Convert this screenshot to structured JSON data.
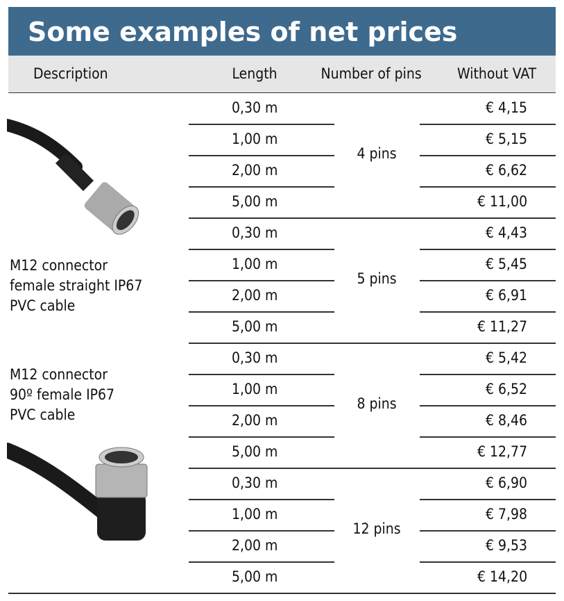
{
  "header": {
    "title": "Some examples of net prices"
  },
  "table": {
    "columns": [
      "Description",
      "Length",
      "Number of pins",
      "Without VAT"
    ],
    "descriptions": [
      [
        "M12 connector",
        "female straight IP67",
        "PVC cable"
      ],
      [
        "M12 connector",
        "90º female IP67",
        "PVC cable"
      ]
    ],
    "groups": [
      {
        "pins": "4 pins",
        "rows": [
          [
            "0,30 m",
            "€ 4,15"
          ],
          [
            "1,00 m",
            "€ 5,15"
          ],
          [
            "2,00 m",
            "€ 6,62"
          ],
          [
            "5,00 m",
            "€ 11,00"
          ]
        ]
      },
      {
        "pins": "5 pins",
        "rows": [
          [
            "0,30 m",
            "€ 4,43"
          ],
          [
            "1,00 m",
            "€ 5,45"
          ],
          [
            "2,00 m",
            "€ 6,91"
          ],
          [
            "5,00 m",
            "€ 11,27"
          ]
        ]
      },
      {
        "pins": "8 pins",
        "rows": [
          [
            "0,30 m",
            "€ 5,42"
          ],
          [
            "1,00 m",
            "€ 6,52"
          ],
          [
            "2,00 m",
            "€ 8,46"
          ],
          [
            "5,00 m",
            "€ 12,77"
          ]
        ]
      },
      {
        "pins": "12 pins",
        "rows": [
          [
            "0,30 m",
            "€ 6,90"
          ],
          [
            "1,00 m",
            "€ 7,98"
          ],
          [
            "2,00 m",
            "€ 9,53"
          ],
          [
            "5,00 m",
            "€ 14,20"
          ]
        ]
      }
    ]
  }
}
